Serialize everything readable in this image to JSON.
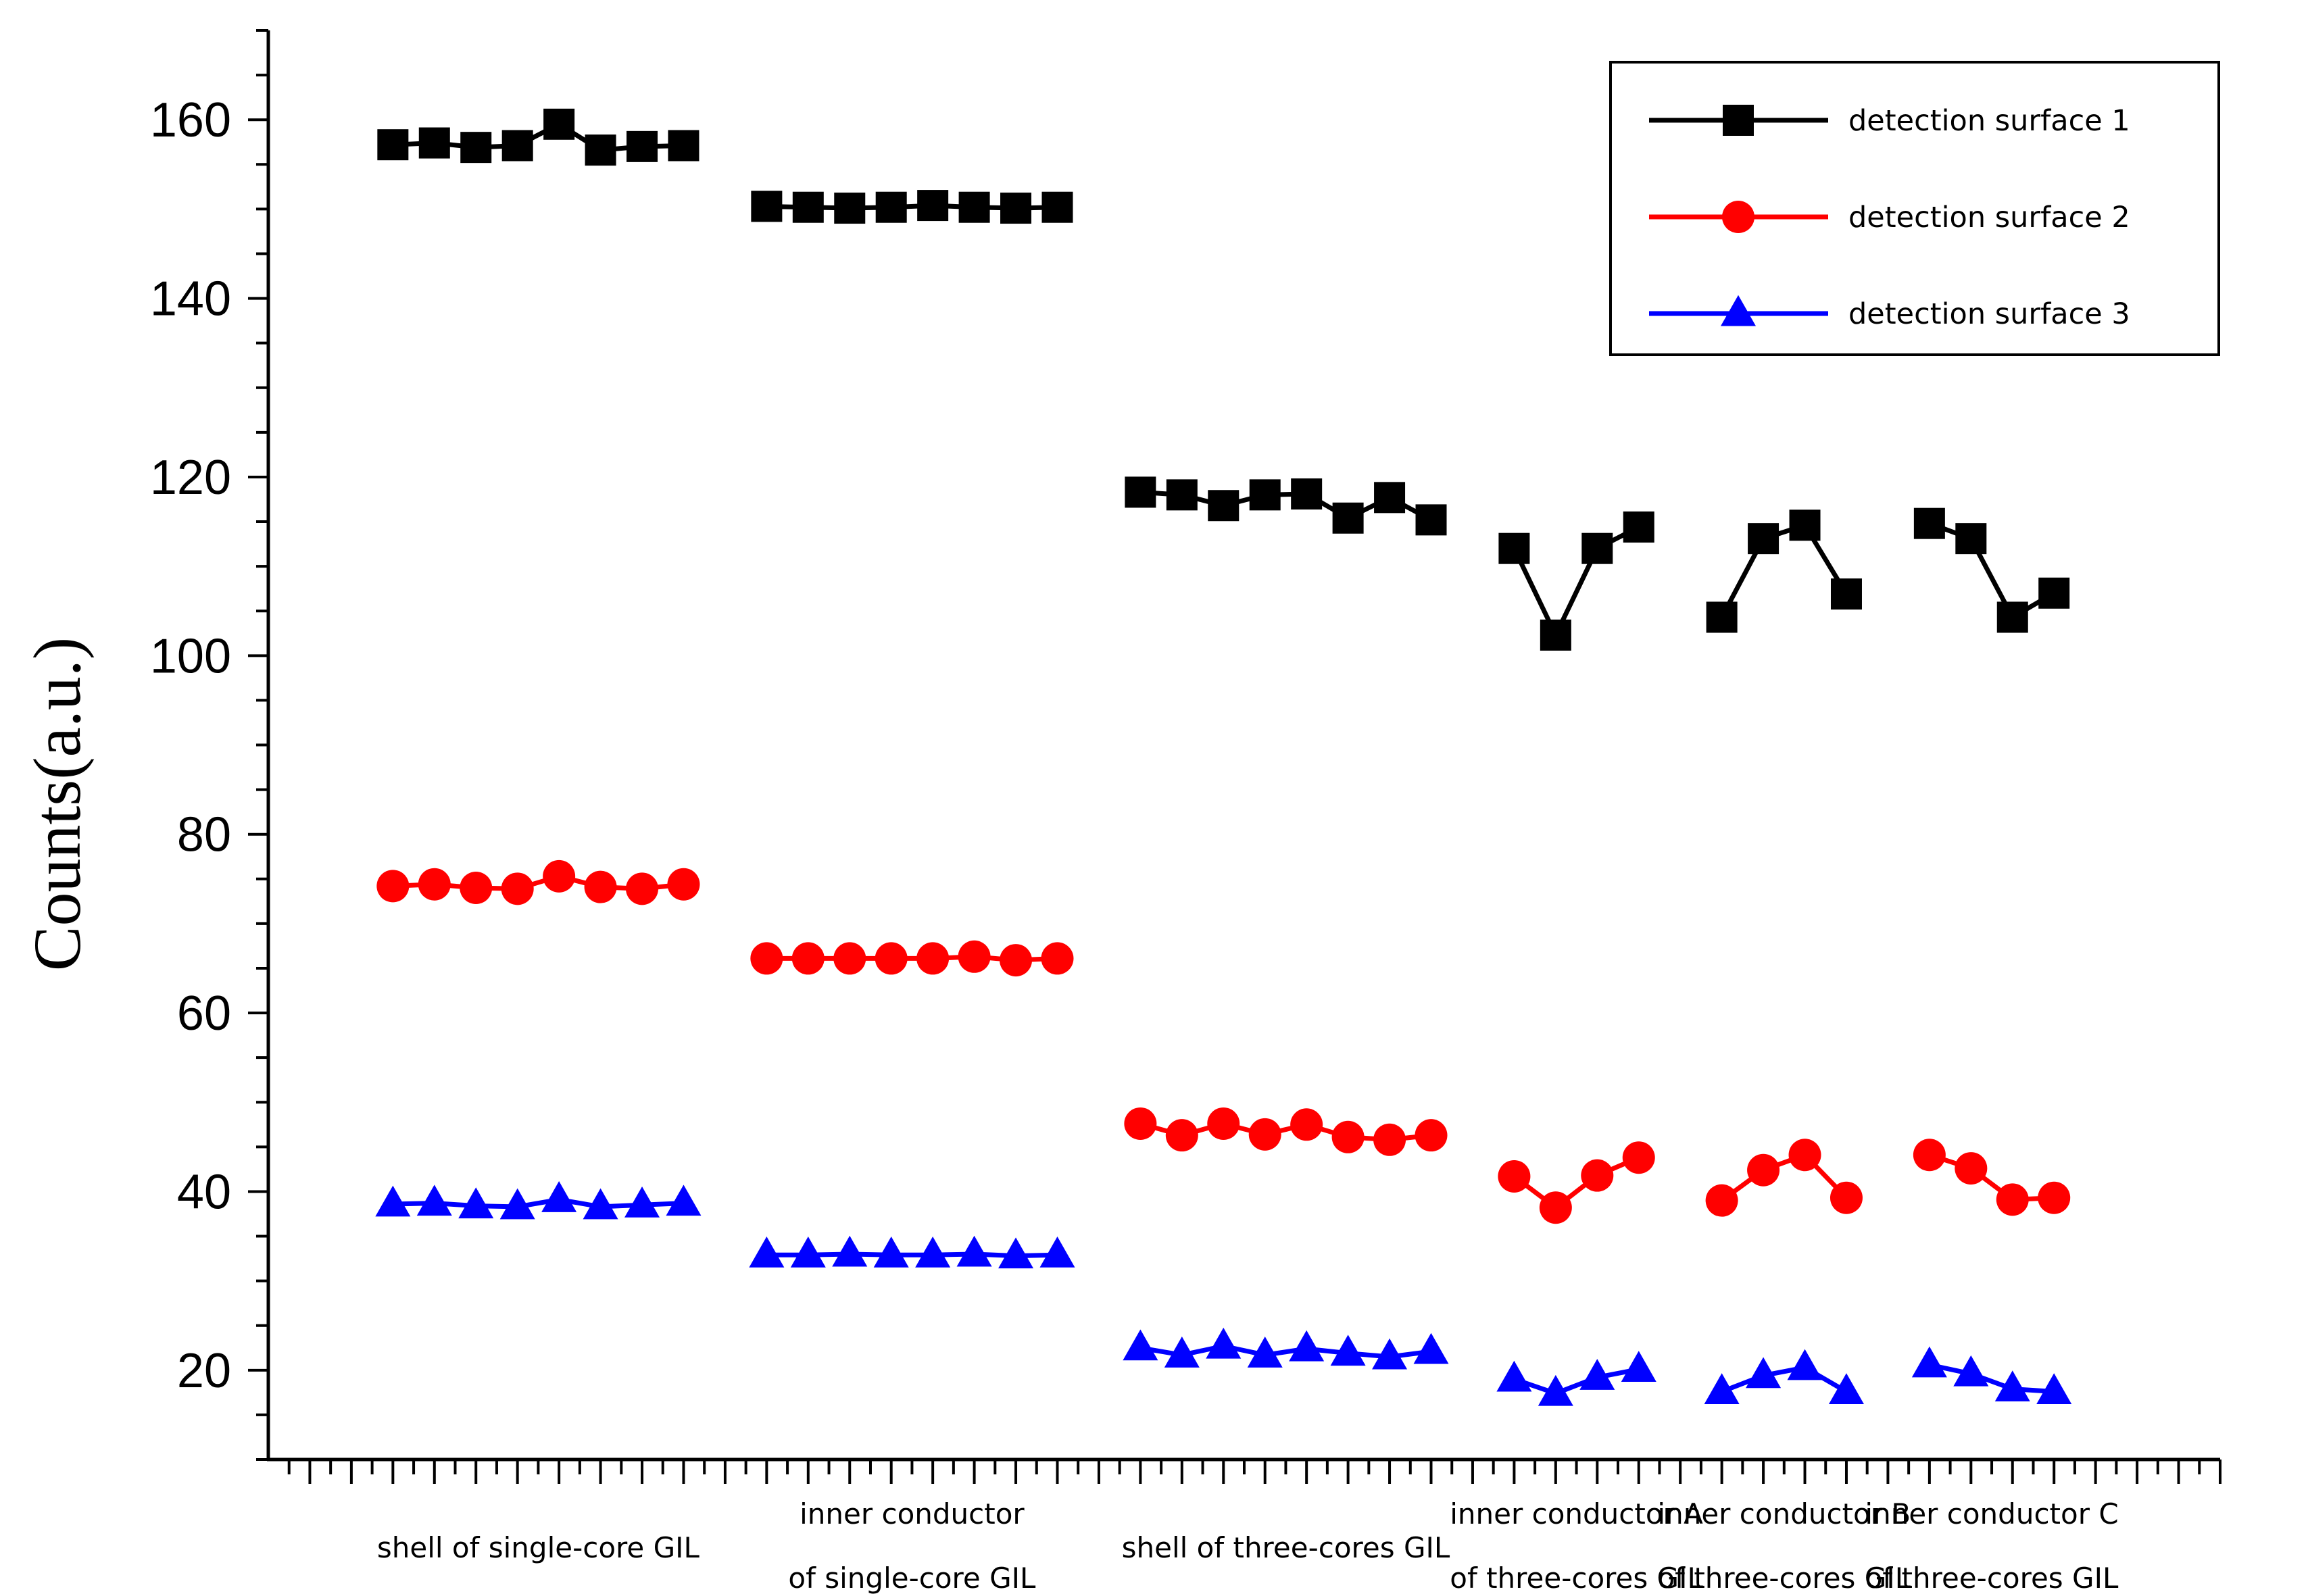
{
  "chart_data": {
    "type": "line",
    "title": "",
    "xlabel": "",
    "ylabel": "Counts(a.u.)",
    "ylim": [
      10,
      170
    ],
    "yticks": [
      20,
      40,
      60,
      80,
      100,
      120,
      140,
      160
    ],
    "grid": false,
    "legend_position": "top-right",
    "x_slots": 47,
    "groups": [
      {
        "label_lines": [
          "shell of single-core GIL"
        ],
        "x": [
          3,
          4,
          5,
          6,
          7,
          8,
          9,
          10
        ]
      },
      {
        "label_lines": [
          "inner conductor",
          "of single-core GIL"
        ],
        "x": [
          12,
          13,
          14,
          15,
          16,
          17,
          18,
          19
        ]
      },
      {
        "label_lines": [
          "shell of three-cores GIL"
        ],
        "x": [
          21,
          22,
          23,
          24,
          25,
          26,
          27,
          28
        ]
      },
      {
        "label_lines": [
          "inner conductor A",
          "of three-cores GIL"
        ],
        "x": [
          30,
          31,
          32,
          33
        ]
      },
      {
        "label_lines": [
          "inner conductor B",
          "of three-cores GIL"
        ],
        "x": [
          35,
          36,
          37,
          38
        ]
      },
      {
        "label_lines": [
          "inner conductor C",
          "of three-cores GIL"
        ],
        "x": [
          40,
          41,
          42,
          43
        ]
      }
    ],
    "series": [
      {
        "name": "detection surface 1",
        "color": "#000000",
        "marker": "square",
        "values": [
          [
            157.2,
            157.4,
            156.9,
            157.1,
            159.5,
            156.6,
            157.0,
            157.1
          ],
          [
            150.3,
            150.2,
            150.1,
            150.2,
            150.4,
            150.2,
            150.1,
            150.2
          ],
          [
            118.3,
            118.0,
            116.8,
            118.0,
            118.1,
            115.4,
            117.7,
            115.2
          ],
          [
            112.0,
            102.3,
            112.0,
            114.4
          ],
          [
            104.3,
            113.1,
            114.6,
            106.9
          ],
          [
            114.8,
            113.1,
            104.3,
            107.0
          ]
        ]
      },
      {
        "name": "detection surface 2",
        "color": "#ff0000",
        "marker": "circle",
        "values": [
          [
            74.2,
            74.4,
            74.0,
            73.9,
            75.3,
            74.1,
            73.9,
            74.4
          ],
          [
            66.1,
            66.1,
            66.1,
            66.1,
            66.1,
            66.3,
            65.9,
            66.1
          ],
          [
            47.6,
            46.3,
            47.6,
            46.4,
            47.5,
            46.1,
            45.8,
            46.3
          ],
          [
            41.7,
            38.2,
            41.8,
            43.8
          ],
          [
            39.0,
            42.4,
            44.1,
            39.3
          ],
          [
            44.1,
            42.6,
            39.1,
            39.3
          ]
        ]
      },
      {
        "name": "detection surface 3",
        "color": "#0000ff",
        "marker": "triangle",
        "values": [
          [
            38.6,
            38.7,
            38.4,
            38.3,
            39.1,
            38.3,
            38.5,
            38.7
          ],
          [
            32.9,
            32.9,
            33.0,
            32.9,
            32.9,
            33.0,
            32.8,
            32.9
          ],
          [
            22.5,
            21.7,
            22.7,
            21.7,
            22.4,
            21.9,
            21.5,
            22.1
          ],
          [
            19.0,
            17.4,
            19.2,
            20.1
          ],
          [
            17.6,
            19.4,
            20.3,
            17.6
          ],
          [
            20.6,
            19.6,
            17.9,
            17.6
          ]
        ]
      }
    ]
  }
}
